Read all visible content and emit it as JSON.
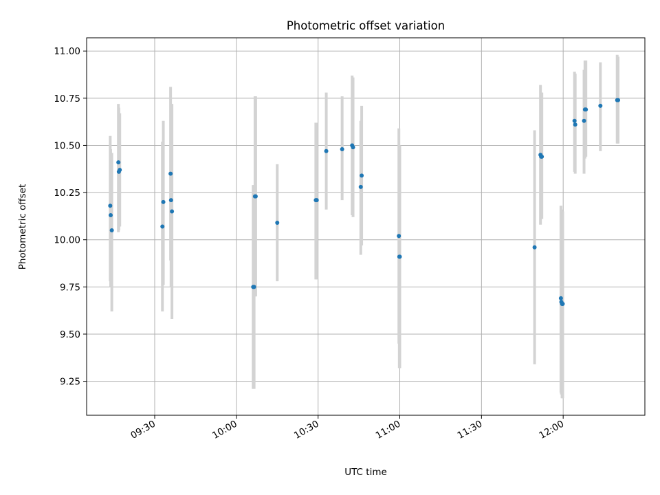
{
  "chart_data": {
    "type": "scatter",
    "title": "Photometric offset variation",
    "xlabel": "UTC time",
    "ylabel": "Photometric offset",
    "xlim": [
      "09:05",
      "12:30"
    ],
    "ylim": [
      9.07,
      11.07
    ],
    "grid": true,
    "x_ticks": [
      "09:30",
      "10:00",
      "10:30",
      "11:00",
      "11:30",
      "12:00"
    ],
    "y_ticks": [
      9.25,
      9.5,
      9.75,
      10.0,
      10.25,
      10.5,
      10.75,
      11.0
    ],
    "colors": {
      "point": "#1f77b4",
      "error_bar": "#d3d3d3",
      "grid": "#b0b0b0"
    },
    "points": [
      {
        "x": "09:13:40",
        "y": 10.18,
        "lo": 9.78,
        "hi": 10.55
      },
      {
        "x": "09:13:50",
        "y": 10.13,
        "lo": 9.75,
        "hi": 10.48
      },
      {
        "x": "09:14:15",
        "y": 10.05,
        "lo": 9.62,
        "hi": 10.46
      },
      {
        "x": "09:16:40",
        "y": 10.41,
        "lo": 10.04,
        "hi": 10.72
      },
      {
        "x": "09:16:50",
        "y": 10.36,
        "lo": 10.05,
        "hi": 10.7
      },
      {
        "x": "09:17:10",
        "y": 10.37,
        "lo": 10.07,
        "hi": 10.67
      },
      {
        "x": "09:32:50",
        "y": 10.07,
        "lo": 9.62,
        "hi": 10.52
      },
      {
        "x": "09:33:10",
        "y": 10.2,
        "lo": 9.76,
        "hi": 10.63
      },
      {
        "x": "09:35:50",
        "y": 10.35,
        "lo": 9.89,
        "hi": 10.81
      },
      {
        "x": "09:36:00",
        "y": 10.21,
        "lo": 9.75,
        "hi": 10.72
      },
      {
        "x": "09:36:20",
        "y": 10.15,
        "lo": 9.58,
        "hi": 10.72
      },
      {
        "x": "10:06:10",
        "y": 9.75,
        "lo": 9.21,
        "hi": 10.29
      },
      {
        "x": "10:06:30",
        "y": 9.75,
        "lo": 9.21,
        "hi": 10.29
      },
      {
        "x": "10:06:50",
        "y": 10.23,
        "lo": 9.7,
        "hi": 10.76
      },
      {
        "x": "10:07:05",
        "y": 10.23,
        "lo": 9.7,
        "hi": 10.76
      },
      {
        "x": "10:15:00",
        "y": 10.09,
        "lo": 9.78,
        "hi": 10.4
      },
      {
        "x": "10:29:10",
        "y": 10.21,
        "lo": 9.79,
        "hi": 10.62
      },
      {
        "x": "10:29:30",
        "y": 10.21,
        "lo": 9.79,
        "hi": 10.62
      },
      {
        "x": "10:33:00",
        "y": 10.47,
        "lo": 10.16,
        "hi": 10.78
      },
      {
        "x": "10:38:50",
        "y": 10.48,
        "lo": 10.21,
        "hi": 10.76
      },
      {
        "x": "10:42:30",
        "y": 10.5,
        "lo": 10.13,
        "hi": 10.87
      },
      {
        "x": "10:42:50",
        "y": 10.49,
        "lo": 10.12,
        "hi": 10.86
      },
      {
        "x": "10:45:40",
        "y": 10.28,
        "lo": 9.92,
        "hi": 10.63
      },
      {
        "x": "10:46:00",
        "y": 10.34,
        "lo": 9.97,
        "hi": 10.71
      },
      {
        "x": "10:59:40",
        "y": 10.02,
        "lo": 9.45,
        "hi": 10.59
      },
      {
        "x": "10:59:50",
        "y": 9.91,
        "lo": 9.32,
        "hi": 10.5
      },
      {
        "x": "11:00:00",
        "y": 9.91,
        "lo": 9.32,
        "hi": 10.5
      },
      {
        "x": "11:49:30",
        "y": 9.96,
        "lo": 9.34,
        "hi": 10.58
      },
      {
        "x": "11:51:40",
        "y": 10.45,
        "lo": 10.08,
        "hi": 10.82
      },
      {
        "x": "11:51:55",
        "y": 10.44,
        "lo": 10.11,
        "hi": 10.78
      },
      {
        "x": "11:52:10",
        "y": 10.44,
        "lo": 10.11,
        "hi": 10.78
      },
      {
        "x": "11:59:10",
        "y": 9.69,
        "lo": 9.19,
        "hi": 10.18
      },
      {
        "x": "11:59:20",
        "y": 9.67,
        "lo": 9.18,
        "hi": 10.16
      },
      {
        "x": "11:59:35",
        "y": 9.66,
        "lo": 9.16,
        "hi": 10.15
      },
      {
        "x": "11:59:50",
        "y": 9.66,
        "lo": 9.16,
        "hi": 10.15
      },
      {
        "x": "12:04:10",
        "y": 10.63,
        "lo": 10.36,
        "hi": 10.89
      },
      {
        "x": "12:04:25",
        "y": 10.61,
        "lo": 10.35,
        "hi": 10.88
      },
      {
        "x": "12:07:40",
        "y": 10.63,
        "lo": 10.35,
        "hi": 10.9
      },
      {
        "x": "12:08:00",
        "y": 10.69,
        "lo": 10.43,
        "hi": 10.95
      },
      {
        "x": "12:08:20",
        "y": 10.69,
        "lo": 10.44,
        "hi": 10.95
      },
      {
        "x": "12:13:40",
        "y": 10.71,
        "lo": 10.47,
        "hi": 10.94
      },
      {
        "x": "12:19:50",
        "y": 10.74,
        "lo": 10.51,
        "hi": 10.98
      },
      {
        "x": "12:20:10",
        "y": 10.74,
        "lo": 10.51,
        "hi": 10.97
      }
    ]
  }
}
